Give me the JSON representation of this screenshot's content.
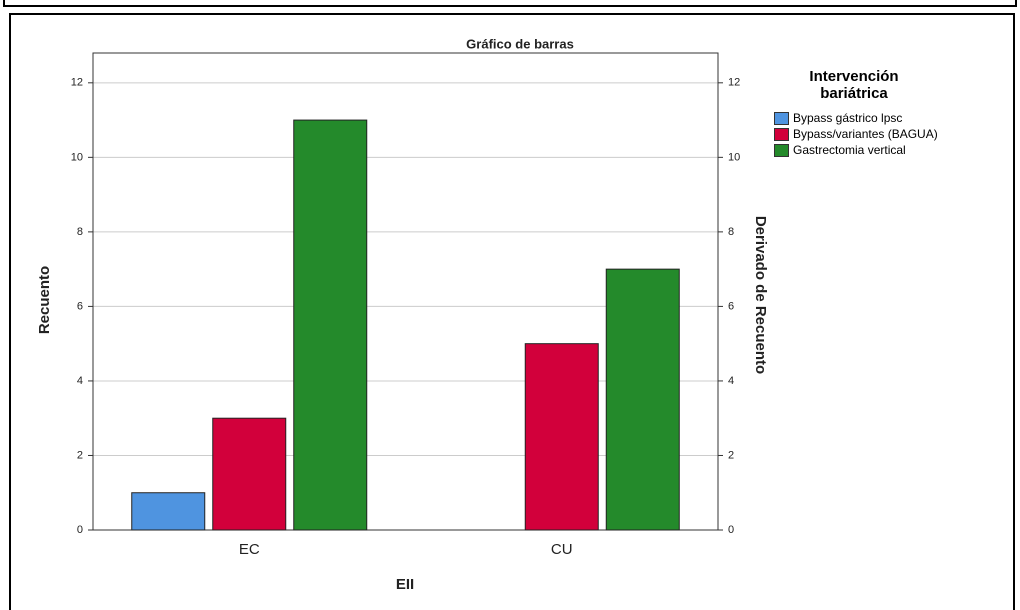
{
  "chart_data": {
    "type": "bar",
    "title": "Gráfico de barras",
    "x_label": "EII",
    "y_label": "Recuento",
    "y2_label": "Derivado de Recuento",
    "legend_title": "Intervención bariátrica",
    "categories": [
      "EC",
      "CU"
    ],
    "series": [
      {
        "name": "Bypass gástrico lpsc",
        "color": "#4f94e0",
        "values": [
          1,
          0
        ]
      },
      {
        "name": "Bypass/variantes (BAGUA)",
        "color": "#d2003b",
        "values": [
          3,
          5
        ]
      },
      {
        "name": "Gastrectomia vertical",
        "color": "#248a2b",
        "values": [
          11,
          7
        ]
      }
    ],
    "ylim": [
      0,
      12.8
    ],
    "yticks": [
      0,
      2,
      4,
      6,
      8,
      10,
      12
    ],
    "y2lim": [
      0,
      12.8
    ],
    "y2ticks": [
      0,
      2,
      4,
      6,
      8,
      10,
      12
    ],
    "grid": true,
    "legend": "right"
  }
}
